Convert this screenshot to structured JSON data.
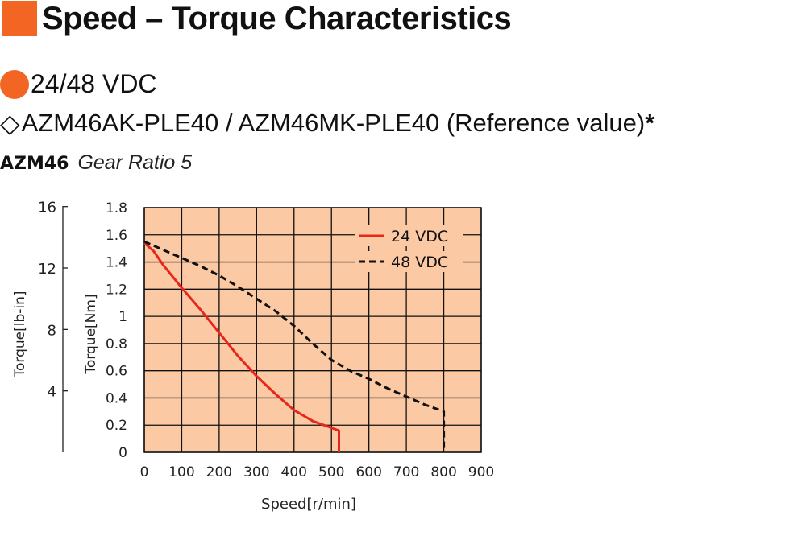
{
  "header": {
    "title": "Speed – Torque Characteristics",
    "voltage": "24/48 VDC",
    "model_symbol": "◇",
    "model": "AZM46AK-PLE40 / AZM46MK-PLE40 (Reference value)",
    "model_mark": "*",
    "product": "AZM46",
    "gear_ratio": "Gear Ratio 5"
  },
  "colors": {
    "accent": "#f26522",
    "plot_background": "#fbc9a3",
    "series_24": "#e8261c",
    "series_48": "#111111"
  },
  "chart_data": {
    "type": "line",
    "xlabel": "Speed[r/min]",
    "ylabel": "Torque[Nm]",
    "ylabel2": "Torque[lb-in]",
    "xlim": [
      0,
      900
    ],
    "ylim": [
      0,
      1.8
    ],
    "x_ticks": [
      "0",
      "100",
      "200",
      "300",
      "400",
      "500",
      "600",
      "700",
      "800",
      "900"
    ],
    "y_ticks": [
      "0",
      "0.2",
      "0.4",
      "0.6",
      "0.8",
      "1",
      "1.2",
      "1.4",
      "1.6",
      "1.8"
    ],
    "y2_ticks": [
      "4",
      "8",
      "12",
      "16"
    ],
    "y2_tick_values": [
      4,
      8,
      12,
      16
    ],
    "grid": true,
    "legend_position": "top-right",
    "series": [
      {
        "name": "24 VDC",
        "style": "solid",
        "points": [
          [
            0,
            1.54
          ],
          [
            25,
            1.48
          ],
          [
            50,
            1.38
          ],
          [
            100,
            1.21
          ],
          [
            150,
            1.05
          ],
          [
            200,
            0.88
          ],
          [
            250,
            0.71
          ],
          [
            300,
            0.56
          ],
          [
            350,
            0.43
          ],
          [
            400,
            0.31
          ],
          [
            450,
            0.23
          ],
          [
            500,
            0.18
          ],
          [
            520,
            0.16
          ],
          [
            520,
            0
          ]
        ]
      },
      {
        "name": "48 VDC",
        "style": "dashed",
        "points": [
          [
            0,
            1.55
          ],
          [
            50,
            1.49
          ],
          [
            100,
            1.43
          ],
          [
            150,
            1.37
          ],
          [
            200,
            1.3
          ],
          [
            250,
            1.22
          ],
          [
            300,
            1.13
          ],
          [
            350,
            1.04
          ],
          [
            400,
            0.93
          ],
          [
            450,
            0.8
          ],
          [
            500,
            0.68
          ],
          [
            550,
            0.6
          ],
          [
            600,
            0.54
          ],
          [
            650,
            0.47
          ],
          [
            700,
            0.41
          ],
          [
            750,
            0.35
          ],
          [
            800,
            0.3
          ],
          [
            800,
            0
          ]
        ]
      }
    ]
  }
}
